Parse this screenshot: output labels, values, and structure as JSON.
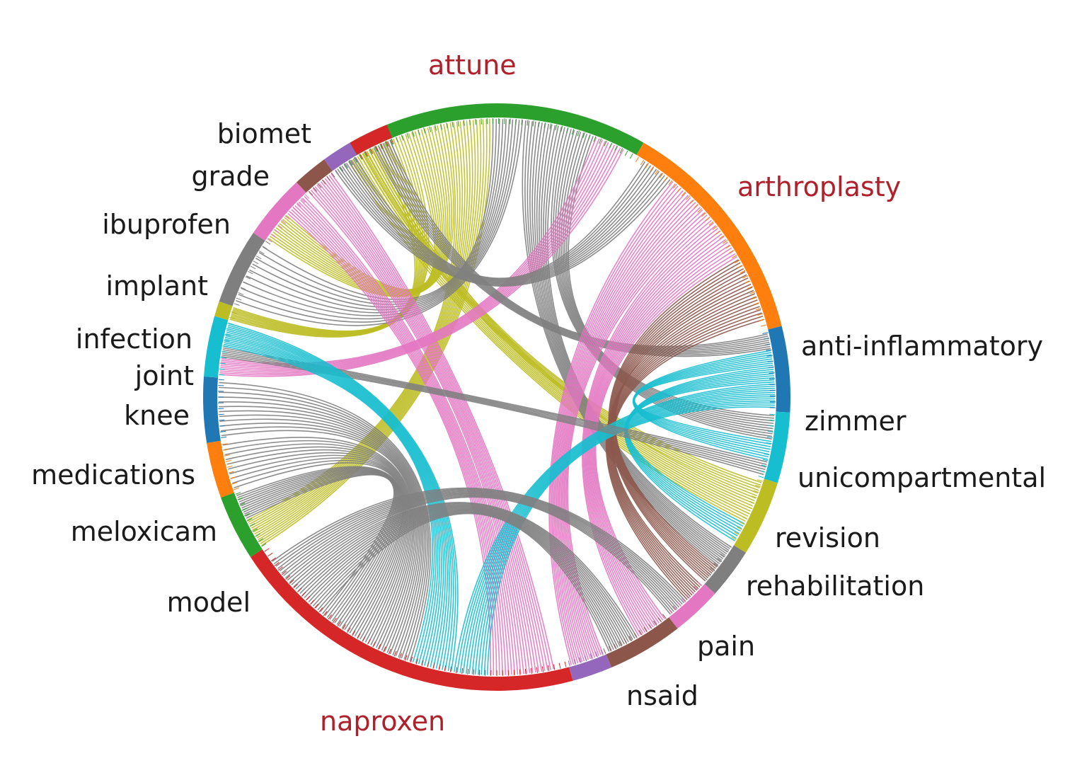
{
  "diagram": {
    "type": "chord",
    "highlight_color": "#b0202a",
    "nodes": [
      {
        "id": "attune",
        "label": "attune",
        "color": "#2ca02c",
        "highlight": true
      },
      {
        "id": "arthroplasty",
        "label": "arthroplasty",
        "color": "#ff7f0e",
        "highlight": true
      },
      {
        "id": "anti-inflammatory",
        "label": "anti-inflammatory",
        "color": "#1f77b4",
        "highlight": false
      },
      {
        "id": "zimmer",
        "label": "zimmer",
        "color": "#17becf",
        "highlight": false
      },
      {
        "id": "unicompartmental",
        "label": "unicompartmental",
        "color": "#bcbd22",
        "highlight": false
      },
      {
        "id": "revision",
        "label": "revision",
        "color": "#7f7f7f",
        "highlight": false
      },
      {
        "id": "rehabilitation",
        "label": "rehabilitation",
        "color": "#e377c2",
        "highlight": false
      },
      {
        "id": "pain",
        "label": "pain",
        "color": "#8c564b",
        "highlight": false
      },
      {
        "id": "nsaid",
        "label": "nsaid",
        "color": "#9467bd",
        "highlight": false
      },
      {
        "id": "naproxen",
        "label": "naproxen",
        "color": "#d62728",
        "highlight": true
      },
      {
        "id": "model",
        "label": "model",
        "color": "#2ca02c",
        "highlight": false
      },
      {
        "id": "meloxicam",
        "label": "meloxicam",
        "color": "#ff7f0e",
        "highlight": false
      },
      {
        "id": "medications",
        "label": "medications",
        "color": "#1f77b4",
        "highlight": false
      },
      {
        "id": "knee",
        "label": "knee",
        "color": "#17becf",
        "highlight": false
      },
      {
        "id": "joint",
        "label": "joint",
        "color": "#bcbd22",
        "highlight": false
      },
      {
        "id": "infection",
        "label": "infection",
        "color": "#7f7f7f",
        "highlight": false
      },
      {
        "id": "implant",
        "label": "implant",
        "color": "#e377c2",
        "highlight": false
      },
      {
        "id": "ibuprofen",
        "label": "ibuprofen",
        "color": "#8c564b",
        "highlight": false
      },
      {
        "id": "grade",
        "label": "grade",
        "color": "#9467bd",
        "highlight": false
      },
      {
        "id": "biomet",
        "label": "biomet",
        "color": "#d62728",
        "highlight": false
      }
    ],
    "links": [
      {
        "source": "biomet",
        "target": "unicompartmental",
        "color": "#bcbd22",
        "count": 6
      },
      {
        "source": "attune",
        "target": "unicompartmental",
        "color": "#bcbd22",
        "count": 10
      },
      {
        "source": "attune",
        "target": "joint",
        "color": "#bcbd22",
        "count": 10
      },
      {
        "source": "attune",
        "target": "implant",
        "color": "#bcbd22",
        "count": 12
      },
      {
        "source": "attune",
        "target": "model",
        "color": "#bcbd22",
        "count": 14
      },
      {
        "source": "attune",
        "target": "infection",
        "color": "#7f7f7f",
        "count": 10
      },
      {
        "source": "attune",
        "target": "revision",
        "color": "#7f7f7f",
        "count": 12
      },
      {
        "source": "attune",
        "target": "zimmer",
        "color": "#7f7f7f",
        "count": 10
      },
      {
        "source": "attune",
        "target": "knee",
        "color": "#e377c2",
        "count": 10
      },
      {
        "source": "biomet",
        "target": "anti-inflammatory",
        "color": "#7f7f7f",
        "count": 8
      },
      {
        "source": "grade",
        "target": "arthroplasty",
        "color": "#7f7f7f",
        "count": 10
      },
      {
        "source": "ibuprofen",
        "target": "naproxen",
        "color": "#e377c2",
        "count": 12
      },
      {
        "source": "implant",
        "target": "naproxen",
        "color": "#e377c2",
        "count": 10
      },
      {
        "source": "arthroplasty",
        "target": "nsaid",
        "color": "#e377c2",
        "count": 16
      },
      {
        "source": "arthroplasty",
        "target": "pain",
        "color": "#e377c2",
        "count": 14
      },
      {
        "source": "arthroplasty",
        "target": "revision",
        "color": "#8c564b",
        "count": 10
      },
      {
        "source": "arthroplasty",
        "target": "rehabilitation",
        "color": "#8c564b",
        "count": 10
      },
      {
        "source": "anti-inflammatory",
        "target": "zimmer",
        "color": "#17becf",
        "count": 8
      },
      {
        "source": "anti-inflammatory",
        "target": "unicompartmental",
        "color": "#17becf",
        "count": 8
      },
      {
        "source": "anti-inflammatory",
        "target": "naproxen",
        "color": "#17becf",
        "count": 12
      },
      {
        "source": "zimmer",
        "target": "knee",
        "color": "#7f7f7f",
        "count": 6
      },
      {
        "source": "knee",
        "target": "naproxen",
        "color": "#17becf",
        "count": 14
      },
      {
        "source": "medications",
        "target": "naproxen",
        "color": "#7f7f7f",
        "count": 12
      },
      {
        "source": "meloxicam",
        "target": "naproxen",
        "color": "#7f7f7f",
        "count": 10
      },
      {
        "source": "model",
        "target": "naproxen",
        "color": "#7f7f7f",
        "count": 12
      },
      {
        "source": "naproxen",
        "target": "pain",
        "color": "#7f7f7f",
        "count": 14
      },
      {
        "source": "naproxen",
        "target": "rehabilitation",
        "color": "#7f7f7f",
        "count": 10
      }
    ]
  }
}
